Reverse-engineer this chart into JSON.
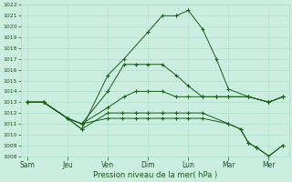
{
  "xlabel": "Pression niveau de la mer( hPa )",
  "background_color": "#cceee0",
  "grid_color": "#aaddcc",
  "line_color": "#1a5c1a",
  "ylim": [
    1008,
    1022
  ],
  "yticks": [
    1008,
    1009,
    1010,
    1011,
    1012,
    1013,
    1014,
    1015,
    1016,
    1017,
    1018,
    1019,
    1020,
    1021,
    1022
  ],
  "xtick_labels": [
    "Sam",
    "Jeu",
    "Ven",
    "Dim",
    "Lun",
    "Mar",
    "Mer"
  ],
  "xtick_positions": [
    0,
    1,
    2,
    3,
    4,
    5,
    6
  ],
  "lines": [
    {
      "x": [
        0,
        0.4,
        1.0,
        1.35,
        2.0,
        2.4,
        3.0,
        3.35,
        3.7,
        4.0,
        4.35,
        4.7,
        5.0,
        5.5,
        6.0,
        6.35
      ],
      "y": [
        1013,
        1013,
        1011.5,
        1010.5,
        1015.5,
        1017,
        1019.5,
        1021,
        1021,
        1021.5,
        1019.8,
        1017,
        1014.2,
        1013.5,
        1013,
        1013.5
      ]
    },
    {
      "x": [
        0,
        0.4,
        1.0,
        1.35,
        2.0,
        2.4,
        2.7,
        3.0,
        3.35,
        3.7,
        4.0,
        4.35,
        4.7,
        5.0,
        5.5,
        6.0,
        6.35
      ],
      "y": [
        1013,
        1013,
        1011.5,
        1011,
        1014,
        1016.5,
        1016.5,
        1016.5,
        1016.5,
        1015.5,
        1014.5,
        1013.5,
        1013.5,
        1013.5,
        1013.5,
        1013,
        1013.5
      ]
    },
    {
      "x": [
        0,
        0.4,
        1.0,
        1.35,
        2.0,
        2.4,
        2.7,
        3.0,
        3.35,
        3.7,
        4.0,
        4.35,
        4.7,
        5.0,
        5.5,
        6.0,
        6.35
      ],
      "y": [
        1013,
        1013,
        1011.5,
        1011,
        1012.5,
        1013.5,
        1014,
        1014,
        1014,
        1013.5,
        1013.5,
        1013.5,
        1013.5,
        1013.5,
        1013.5,
        1013,
        1013.5
      ]
    },
    {
      "x": [
        0,
        0.4,
        1.0,
        1.35,
        2.0,
        2.35,
        2.7,
        3.0,
        3.35,
        3.7,
        4.0,
        4.35,
        5.0,
        5.3,
        5.5,
        5.7,
        6.0,
        6.35
      ],
      "y": [
        1013,
        1013,
        1011.5,
        1011,
        1011.5,
        1011.5,
        1011.5,
        1011.5,
        1011.5,
        1011.5,
        1011.5,
        1011.5,
        1011,
        1010.5,
        1009.2,
        1008.8,
        1008,
        1009
      ]
    },
    {
      "x": [
        0,
        0.4,
        1.0,
        1.35,
        2.0,
        2.35,
        2.7,
        3.0,
        3.35,
        3.7,
        4.0,
        4.35,
        5.0,
        5.3,
        5.5,
        5.7,
        6.0,
        6.35
      ],
      "y": [
        1013,
        1013,
        1011.5,
        1010.5,
        1012,
        1012,
        1012,
        1012,
        1012,
        1012,
        1012,
        1012,
        1011,
        1010.5,
        1009.2,
        1008.8,
        1008,
        1009
      ]
    }
  ]
}
